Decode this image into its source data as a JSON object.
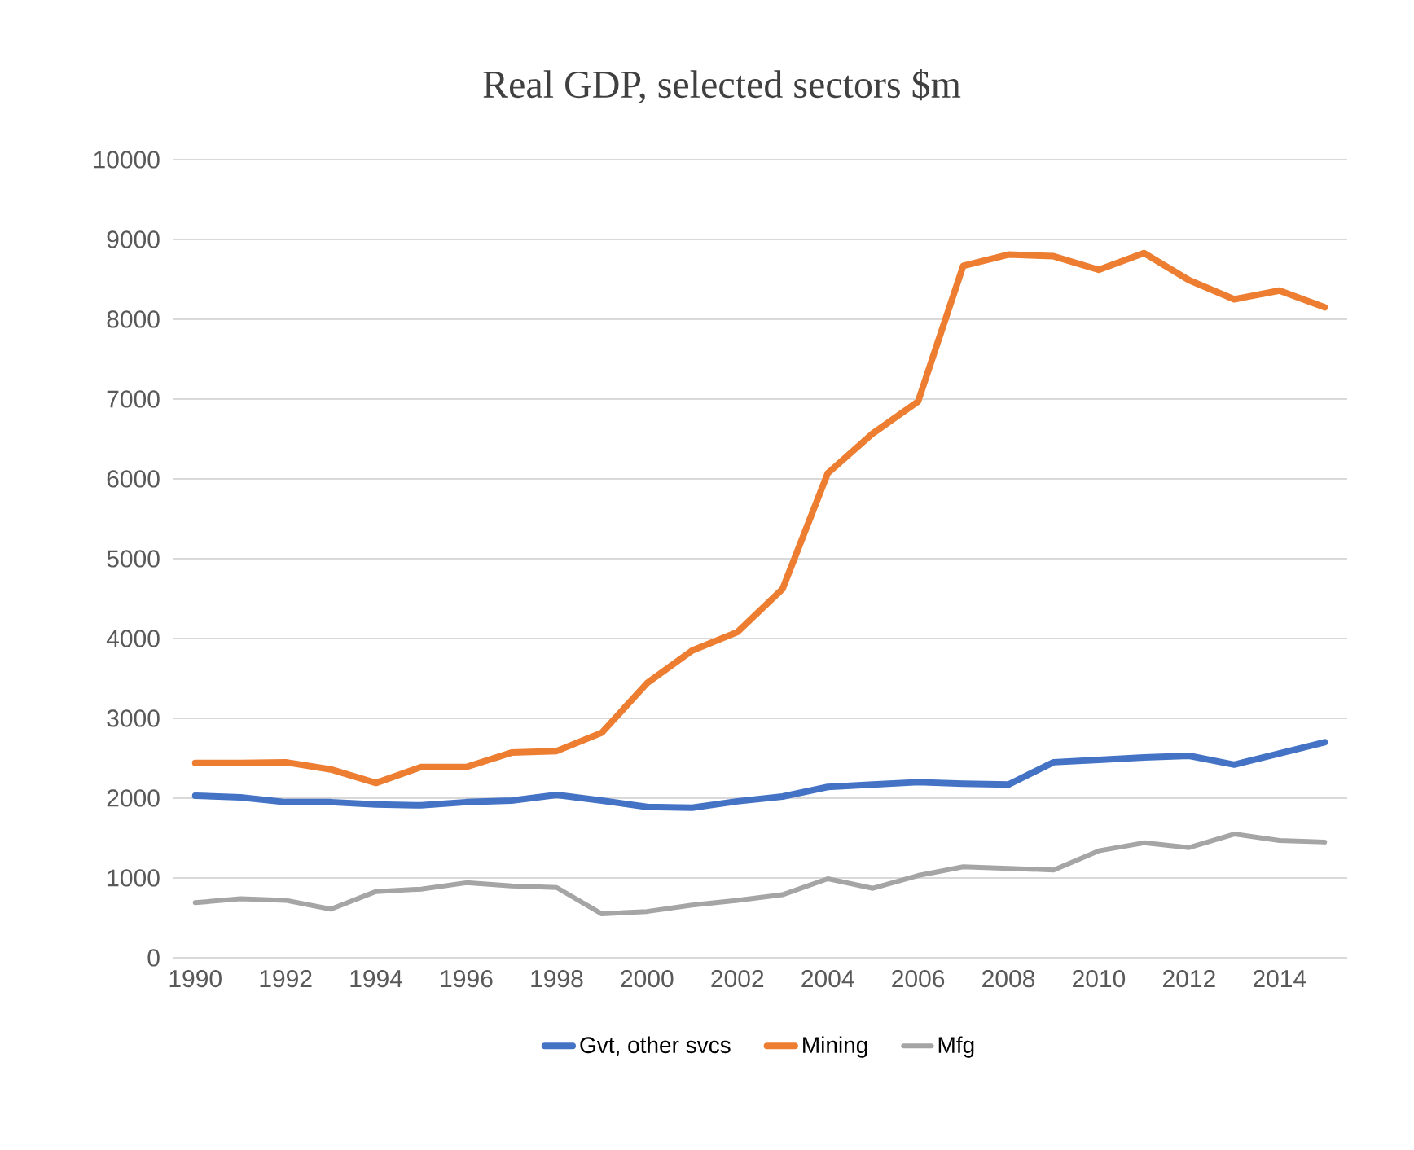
{
  "chart_data": {
    "type": "line",
    "title": "Real GDP, selected sectors $m",
    "x": [
      1990,
      1991,
      1992,
      1993,
      1994,
      1995,
      1996,
      1997,
      1998,
      1999,
      2000,
      2001,
      2002,
      2003,
      2004,
      2005,
      2006,
      2007,
      2008,
      2009,
      2010,
      2011,
      2012,
      2013,
      2014,
      2015
    ],
    "series": [
      {
        "name": "Gvt, other svcs",
        "color": "#4472c4",
        "values": [
          2030,
          2010,
          1950,
          1950,
          1920,
          1910,
          1950,
          1970,
          2040,
          1970,
          1890,
          1880,
          1960,
          2020,
          2140,
          2170,
          2200,
          2180,
          2170,
          2450,
          2480,
          2510,
          2530,
          2420,
          2560,
          2700
        ]
      },
      {
        "name": "Mining",
        "color": "#ed7d31",
        "values": [
          2440,
          2440,
          2450,
          2360,
          2190,
          2390,
          2390,
          2570,
          2590,
          2820,
          3440,
          3850,
          4080,
          4620,
          6070,
          6570,
          6970,
          8670,
          8810,
          8790,
          8620,
          8830,
          8490,
          8250,
          8360,
          8150
        ]
      },
      {
        "name": "Mfg",
        "color": "#a5a5a5",
        "values": [
          690,
          740,
          720,
          610,
          830,
          860,
          940,
          900,
          880,
          550,
          580,
          660,
          720,
          790,
          990,
          870,
          1030,
          1140,
          1120,
          1100,
          1340,
          1440,
          1380,
          1550,
          1470,
          1450
        ]
      }
    ],
    "xlim": [
      1989.5,
      2015.5
    ],
    "xticks": [
      1990,
      1992,
      1994,
      1996,
      1998,
      2000,
      2002,
      2004,
      2006,
      2008,
      2010,
      2012,
      2014
    ],
    "ylim": [
      0,
      10000
    ],
    "yticks": [
      0,
      1000,
      2000,
      3000,
      4000,
      5000,
      6000,
      7000,
      8000,
      9000,
      10000
    ],
    "grid": "y",
    "legend": "bottom",
    "marker": "none",
    "line_style": "solid"
  }
}
